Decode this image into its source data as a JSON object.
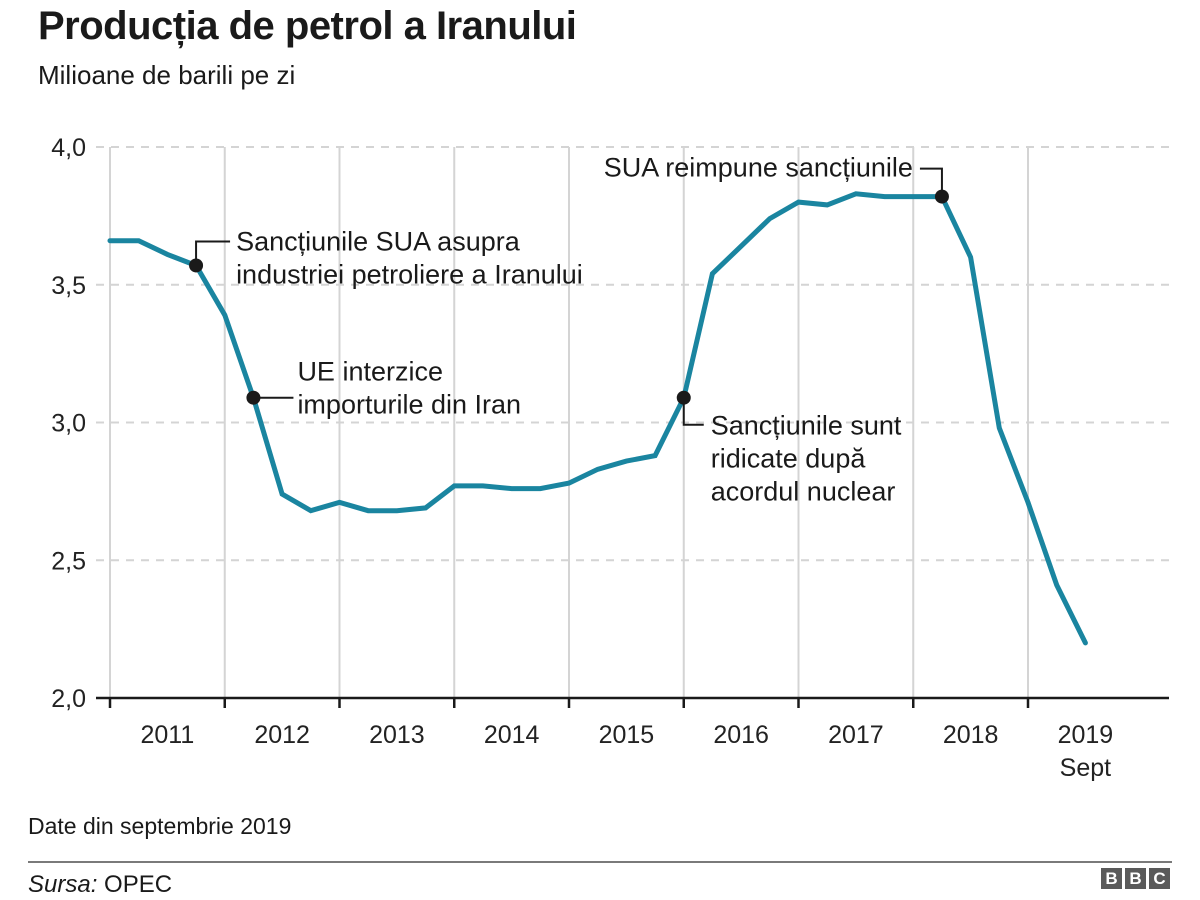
{
  "header": {
    "title": "Producția de petrol a Iranului",
    "subtitle": "Milioane de barili pe zi"
  },
  "footer": {
    "note": "Date din septembrie 2019",
    "source_label": "Sursa:",
    "source_value": "OPEC",
    "logo_letters": [
      "B",
      "B",
      "C"
    ]
  },
  "colors": {
    "line": "#1a85a0",
    "marker": "#1a1a1a",
    "grid": "#d4d4d4",
    "axis": "#1a1a1a"
  },
  "chart_data": {
    "type": "line",
    "title": "Producția de petrol a Iranului",
    "subtitle": "Milioane de barili pe zi",
    "xlabel": "",
    "ylabel": "Milioane de barili pe zi",
    "ylim": [
      2.0,
      4.0
    ],
    "xlim": [
      2011.0,
      2019.0
    ],
    "y_ticks": [
      {
        "value": 2.0,
        "label": "2,0"
      },
      {
        "value": 2.5,
        "label": "2,5"
      },
      {
        "value": 3.0,
        "label": "3,0"
      },
      {
        "value": 3.5,
        "label": "3,5"
      },
      {
        "value": 4.0,
        "label": "4,0"
      }
    ],
    "x_ticks": [
      2011,
      2012,
      2013,
      2014,
      2015,
      2016,
      2017,
      2018,
      2019
    ],
    "x_tick_labels": [
      {
        "label": "2011",
        "at": 2011.5
      },
      {
        "label": "2012",
        "at": 2012.5
      },
      {
        "label": "2013",
        "at": 2013.5
      },
      {
        "label": "2014",
        "at": 2014.5
      },
      {
        "label": "2015",
        "at": 2015.5
      },
      {
        "label": "2016",
        "at": 2016.5
      },
      {
        "label": "2017",
        "at": 2017.5
      },
      {
        "label": "2018",
        "at": 2018.5
      },
      {
        "label": "2019",
        "sublabel": "Sept",
        "at": 2019.5
      }
    ],
    "grid": true,
    "series": [
      {
        "name": "Producția de petrol",
        "x": [
          2011.0,
          2011.25,
          2011.5,
          2011.75,
          2012.0,
          2012.25,
          2012.5,
          2012.75,
          2013.0,
          2013.25,
          2013.5,
          2013.75,
          2014.0,
          2014.25,
          2014.5,
          2014.75,
          2015.0,
          2015.25,
          2015.5,
          2015.75,
          2016.0,
          2016.25,
          2016.5,
          2016.75,
          2017.0,
          2017.25,
          2017.5,
          2017.75,
          2018.0,
          2018.25,
          2018.5,
          2018.75,
          2019.0,
          2019.25,
          2019.5
        ],
        "values": [
          3.66,
          3.66,
          3.61,
          3.57,
          3.39,
          3.09,
          2.74,
          2.68,
          2.71,
          2.68,
          2.68,
          2.69,
          2.77,
          2.77,
          2.76,
          2.76,
          2.78,
          2.83,
          2.86,
          2.88,
          3.09,
          3.54,
          3.64,
          3.74,
          3.8,
          3.79,
          3.83,
          3.82,
          3.82,
          3.82,
          3.6,
          2.98,
          2.71,
          2.41,
          2.2
        ]
      }
    ],
    "annotations": [
      {
        "x": 2011.75,
        "y": 3.57,
        "lines": [
          "Sancțiunile SUA asupra",
          "industriei petroliere a Iranului"
        ],
        "callout": "up-right"
      },
      {
        "x": 2012.25,
        "y": 3.09,
        "lines": [
          "UE interzice",
          "importurile din Iran"
        ],
        "callout": "right"
      },
      {
        "x": 2016.0,
        "y": 3.09,
        "lines": [
          "Sancțiunile sunt",
          "ridicate după",
          "acordul nuclear"
        ],
        "callout": "down-right"
      },
      {
        "x": 2018.25,
        "y": 3.82,
        "lines": [
          "SUA reimpune sancțiunile"
        ],
        "callout": "up-left"
      }
    ]
  }
}
